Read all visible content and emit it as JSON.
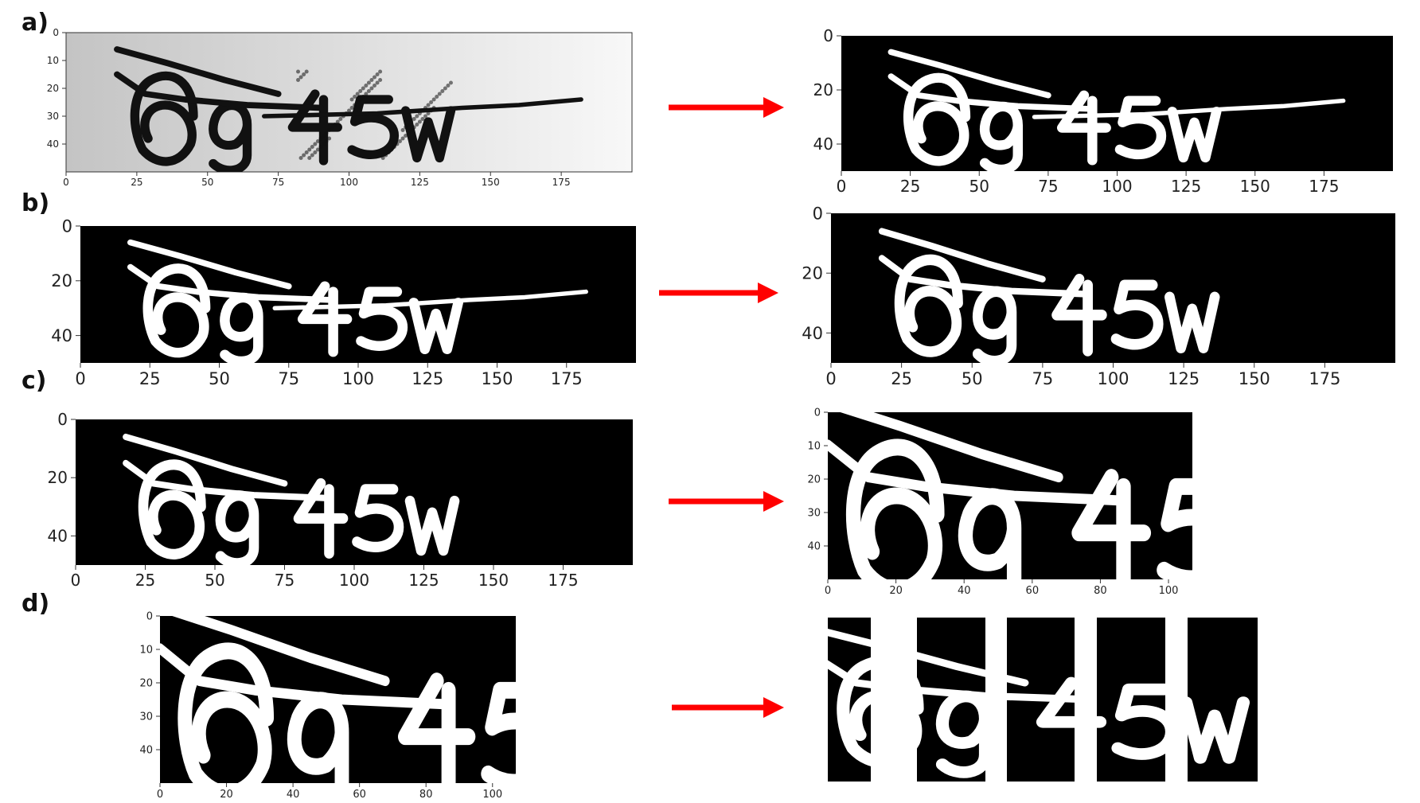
{
  "rows": [
    {
      "label": "a)",
      "left": {
        "theme": "gray",
        "xticks": [
          "0",
          "25",
          "50",
          "75",
          "100",
          "125",
          "150",
          "175"
        ],
        "yticks": [
          "0",
          "10",
          "20",
          "30",
          "40"
        ],
        "has_line": true
      },
      "right": {
        "theme": "binary",
        "xticks": [
          "0",
          "25",
          "50",
          "75",
          "100",
          "125",
          "150",
          "175"
        ],
        "yticks": [
          "0",
          "20",
          "40"
        ],
        "has_line": true
      }
    },
    {
      "label": "b)",
      "left": {
        "theme": "binary",
        "xticks": [
          "0",
          "25",
          "50",
          "75",
          "100",
          "125",
          "150",
          "175"
        ],
        "yticks": [
          "0",
          "20",
          "40"
        ],
        "has_line": true
      },
      "right": {
        "theme": "binary",
        "xticks": [
          "0",
          "25",
          "50",
          "75",
          "100",
          "125",
          "150",
          "175"
        ],
        "yticks": [
          "0",
          "20",
          "40"
        ],
        "has_line": false
      }
    },
    {
      "label": "c)",
      "left": {
        "theme": "binary",
        "xticks": [
          "0",
          "25",
          "50",
          "75",
          "100",
          "125",
          "150",
          "175"
        ],
        "yticks": [
          "0",
          "20",
          "40"
        ],
        "has_line": false
      },
      "right": {
        "theme": "binary",
        "xticks": [
          "0",
          "20",
          "40",
          "60",
          "80",
          "100"
        ],
        "yticks": [
          "0",
          "10",
          "20",
          "30",
          "40"
        ],
        "has_line": false
      }
    },
    {
      "label": "d)",
      "left": {
        "theme": "binary",
        "xticks": [
          "0",
          "20",
          "40",
          "60",
          "80",
          "100"
        ],
        "yticks": [
          "0",
          "10",
          "20",
          "30",
          "40"
        ],
        "has_line": false
      },
      "right": {
        "theme": "segments",
        "segments": 5
      }
    }
  ],
  "captcha_text": "6g45w",
  "colors": {
    "arrow": "#ff0000",
    "image_bg": "#000000",
    "glyph": "#ffffff"
  }
}
